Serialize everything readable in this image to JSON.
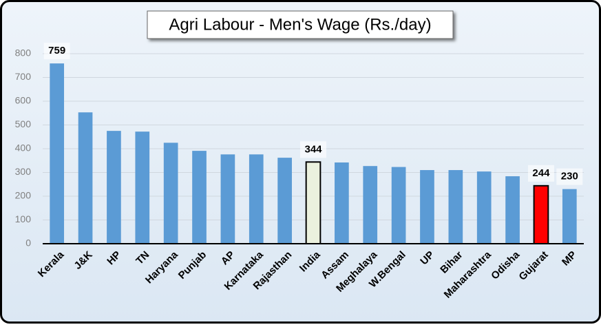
{
  "chart_data": {
    "type": "bar",
    "title": "Agri Labour - Men's Wage (Rs./day)",
    "categories": [
      "Kerala",
      "J&K",
      "HP",
      "TN",
      "Haryana",
      "Punjab",
      "AP",
      "Karnataka",
      "Rajasthan",
      "India",
      "Assam",
      "Meghalaya",
      "W.Bengal",
      "UP",
      "Bihar",
      "Maharashtra",
      "Odisha",
      "Gujarat",
      "MP"
    ],
    "values": [
      759,
      553,
      475,
      472,
      425,
      391,
      376,
      376,
      362,
      344,
      342,
      327,
      323,
      310,
      310,
      304,
      284,
      244,
      230
    ],
    "value_labels": [
      "759",
      null,
      null,
      null,
      null,
      null,
      null,
      null,
      null,
      "344",
      null,
      null,
      null,
      null,
      null,
      null,
      null,
      "244",
      "230"
    ],
    "colors": [
      "#5b9bd5",
      "#5b9bd5",
      "#5b9bd5",
      "#5b9bd5",
      "#5b9bd5",
      "#5b9bd5",
      "#5b9bd5",
      "#5b9bd5",
      "#5b9bd5",
      "#ebf1de",
      "#5b9bd5",
      "#5b9bd5",
      "#5b9bd5",
      "#5b9bd5",
      "#5b9bd5",
      "#5b9bd5",
      "#5b9bd5",
      "#ff0000",
      "#5b9bd5"
    ],
    "edgecolors": [
      null,
      null,
      null,
      null,
      null,
      null,
      null,
      null,
      null,
      "#000000",
      null,
      null,
      null,
      null,
      null,
      null,
      null,
      "#000000",
      null
    ],
    "ylim": [
      0,
      800
    ],
    "yticks": [
      0,
      100,
      200,
      300,
      400,
      500,
      600,
      700,
      800
    ],
    "grid": true
  }
}
